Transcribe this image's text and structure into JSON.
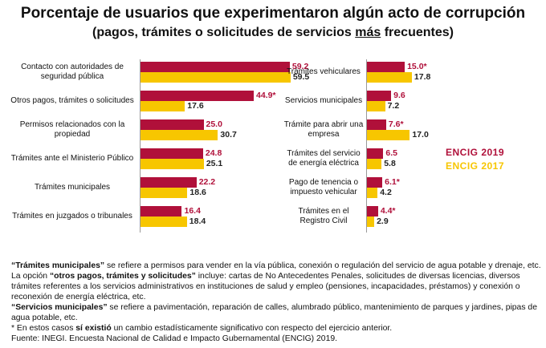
{
  "title": "Porcentaje de usuarios que experimentaron algún acto de corrupción",
  "subtitle": [
    "(pagos, trámites o solicitudes de servicios ",
    "más",
    " frecuentes)"
  ],
  "chart_data": [
    {
      "type": "hbar",
      "categories": [
        "Contacto con autoridades de seguridad pública",
        "Otros pagos, trámites o solicitudes",
        "Permisos relacionados con la propiedad",
        "Trámites ante el Ministerio Público",
        "Trámites municipales",
        "Trámites en juzgados o tribunales"
      ],
      "series": [
        {
          "name": "ENCIG 2019",
          "color": "#b0103a",
          "values": [
            59.2,
            44.9,
            25.0,
            24.8,
            22.2,
            16.4
          ],
          "value_labels": [
            "59.2",
            "44.9*",
            "25.0",
            "24.8",
            "22.2",
            "16.4"
          ]
        },
        {
          "name": "ENCIG 2017",
          "color": "#f7c600",
          "values": [
            59.5,
            17.6,
            30.7,
            25.1,
            18.6,
            18.4
          ],
          "value_labels": [
            "59.5",
            "17.6",
            "30.7",
            "25.1",
            "18.6",
            "18.4"
          ]
        }
      ]
    },
    {
      "type": "hbar",
      "categories": [
        "Trámites vehiculares",
        "Servicios municipales",
        "Trámite para abrir una empresa",
        "Trámites del servicio de energía eléctrica",
        "Pago de tenencia o impuesto vehicular",
        "Trámites en el Registro Civil"
      ],
      "series": [
        {
          "color": "#b0103a",
          "values": [
            15.0,
            9.6,
            7.6,
            6.5,
            6.1,
            4.4
          ],
          "value_labels": [
            "15.0*",
            "9.6",
            "7.6*",
            "6.5",
            "6.1*",
            "4.4*"
          ]
        },
        {
          "color": "#f7c600",
          "values": [
            17.8,
            7.2,
            17.0,
            5.8,
            4.2,
            2.9
          ],
          "value_labels": [
            "17.8",
            "7.2",
            "17.0",
            "5.8",
            "4.2",
            "2.9"
          ]
        }
      ]
    }
  ],
  "notes": [
    [
      {
        "text": "“Trámites municipales”",
        "bold": true
      },
      {
        "text": " se refiere a permisos para vender en la vía pública, conexión o regulación del servicio de agua potable y drenaje, etc."
      }
    ],
    [
      {
        "text": "La opción "
      },
      {
        "text": "“otros pagos, trámites y solicitudes”",
        "bold": true
      },
      {
        "text": " incluye: cartas de No Antecedentes Penales, solicitudes de diversas licencias, diversos trámites referentes a los servicios administrativos en instituciones de salud y empleo (pensiones, incapacidades, préstamos) y conexión o reconexión de energía eléctrica, etc."
      }
    ],
    [
      {
        "text": "“Servicios municipales”",
        "bold": true
      },
      {
        "text": " se refiere a pavimentación, reparación de calles, alumbrado público, mantenimiento de parques y jardines, pipas de agua potable, etc."
      }
    ],
    [
      {
        "text": "* En estos casos "
      },
      {
        "text": "sí existió",
        "bold": true
      },
      {
        "text": " un cambio estadísticamente significativo con respecto del ejercicio anterior."
      }
    ],
    [
      {
        "text": "Fuente: INEGI. Encuesta Nacional de Calidad e Impacto Gubernamental (ENCIG) 2019."
      }
    ]
  ]
}
